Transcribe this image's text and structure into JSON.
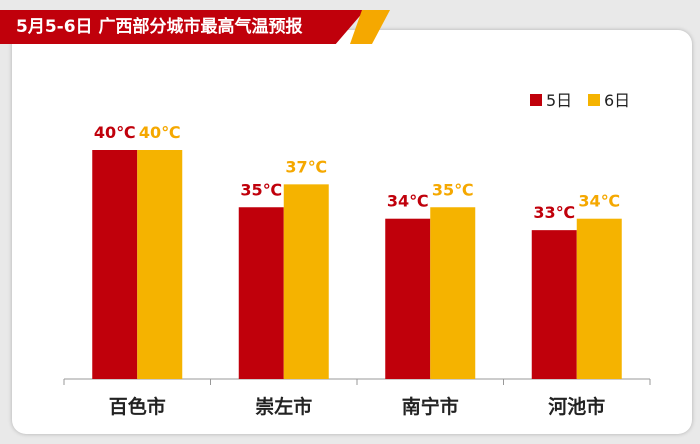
{
  "title": "5月5-6日 广西部分城市最高气温预报",
  "colors": {
    "day5": "#c0000b",
    "day6": "#f5b300",
    "accent": "#f5a800"
  },
  "chart_data": {
    "type": "bar",
    "title": "5月5-6日 广西部分城市最高气温预报",
    "categories": [
      "百色市",
      "崇左市",
      "南宁市",
      "河池市"
    ],
    "series": [
      {
        "name": "5日",
        "values": [
          40,
          35,
          34,
          33
        ],
        "labels": [
          "40℃",
          "35℃",
          "34℃",
          "33℃"
        ]
      },
      {
        "name": "6日",
        "values": [
          40,
          37,
          35,
          34
        ],
        "labels": [
          "40℃",
          "37℃",
          "35℃",
          "34℃"
        ]
      }
    ],
    "unit": "℃",
    "ylim": [
      20,
      42
    ],
    "grid": false,
    "legend_position": "top-right"
  }
}
